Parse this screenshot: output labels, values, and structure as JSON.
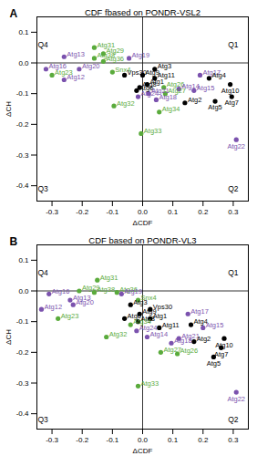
{
  "chart_data": [
    {
      "type": "scatter",
      "title": "CDF fbased on PONDR-VSL2",
      "x_label": "ΔCDF",
      "y_label": "ΔCH",
      "xlim": [
        -0.35,
        0.35
      ],
      "ylim": [
        -0.45,
        0.15
      ],
      "xticks": [
        {
          "value": -0.3,
          "label": "-0.3"
        },
        {
          "value": -0.2,
          "label": "-0.2"
        },
        {
          "value": -0.1,
          "label": "-0.1"
        },
        {
          "value": 0,
          "label": "0.0"
        },
        {
          "value": 0.1,
          "label": "0.1"
        },
        {
          "value": 0.2,
          "label": "0.2"
        },
        {
          "value": 0.3,
          "label": "0.3"
        }
      ],
      "yticks": [
        {
          "value": 0.1,
          "label": "0.1"
        },
        {
          "value": 0,
          "label": "0.0"
        },
        {
          "value": -0.1,
          "label": "-0.1"
        },
        {
          "value": -0.2,
          "label": "-0.2"
        },
        {
          "value": -0.3,
          "label": "-0.3"
        },
        {
          "value": -0.4,
          "label": "-0.4"
        }
      ],
      "reference_lines": {
        "x": 0,
        "y": 0
      },
      "annotations": [
        {
          "text": "A"
        },
        {
          "text": "Q1",
          "x": 0.3,
          "y": 0.06
        },
        {
          "text": "Q2",
          "x": 0.3,
          "y": -0.41
        },
        {
          "text": "Q3",
          "x": -0.33,
          "y": -0.41
        },
        {
          "text": "Q4",
          "x": -0.33,
          "y": 0.06
        }
      ],
      "labels": [
        "Atg16",
        "Atg13",
        "Atg31",
        "Atg29",
        "Atg38",
        "Atg36",
        "Atg19",
        "Snx4",
        "Atg23",
        "Atg20",
        "Atg12",
        "Atg3",
        "Vps30",
        "Atg9",
        "Atg11",
        "Atg1",
        "Atg8",
        "Atg6",
        "Atg26",
        "Atg24",
        "Atg27",
        "Atg14",
        "Atg15",
        "Atg17",
        "Atg4",
        "Atg10",
        "Atg7",
        "Atg5",
        "Atg2",
        "Atg18",
        "Atg21",
        "Atg32",
        "Atg34",
        "Atg33",
        "Atg22"
      ],
      "x": [
        -0.32,
        -0.26,
        -0.16,
        -0.13,
        -0.16,
        -0.13,
        -0.045,
        -0.1,
        -0.3,
        -0.21,
        -0.26,
        0.04,
        -0.06,
        0.0,
        0.04,
        0.015,
        -0.01,
        -0.02,
        0.07,
        -0.015,
        0.075,
        0.12,
        0.17,
        0.19,
        0.22,
        0.29,
        0.295,
        0.24,
        0.14,
        0.045,
        0.02,
        -0.095,
        0.055,
        -0.005,
        0.31
      ],
      "y": [
        -0.02,
        0.02,
        0.05,
        0.03,
        0.015,
        0.005,
        0.015,
        -0.03,
        -0.04,
        -0.02,
        -0.055,
        -0.02,
        -0.04,
        -0.04,
        -0.05,
        -0.07,
        -0.08,
        -0.09,
        -0.08,
        -0.11,
        -0.1,
        -0.085,
        -0.09,
        -0.04,
        -0.05,
        -0.07,
        -0.11,
        -0.125,
        -0.13,
        -0.12,
        -0.1,
        -0.14,
        -0.16,
        -0.23,
        -0.25
      ],
      "colors": [
        "#7b52ae",
        "#7b52ae",
        "#5aab3c",
        "#5aab3c",
        "#5aab3c",
        "#5aab3c",
        "#7b52ae",
        "#5aab3c",
        "#5aab3c",
        "#7b52ae",
        "#7b52ae",
        "#000000",
        "#000000",
        "#000000",
        "#000000",
        "#000000",
        "#000000",
        "#000000",
        "#5aab3c",
        "#7b52ae",
        "#5aab3c",
        "#7b52ae",
        "#7b52ae",
        "#7b52ae",
        "#000000",
        "#000000",
        "#000000",
        "#000000",
        "#000000",
        "#7b52ae",
        "#7b52ae",
        "#5aab3c",
        "#5aab3c",
        "#5aab3c",
        "#7b52ae"
      ]
    },
    {
      "type": "scatter",
      "title": "CDF based on PONDR-VL3",
      "x_label": "ΔCDF",
      "y_label": "ΔCH",
      "xlim": [
        -0.35,
        0.35
      ],
      "ylim": [
        -0.45,
        0.15
      ],
      "xticks": [
        {
          "value": -0.3,
          "label": "-0.3"
        },
        {
          "value": -0.2,
          "label": "-0.2"
        },
        {
          "value": -0.1,
          "label": "-0.1"
        },
        {
          "value": 0,
          "label": "0.0"
        },
        {
          "value": 0.1,
          "label": "0.1"
        },
        {
          "value": 0.2,
          "label": "0.2"
        },
        {
          "value": 0.3,
          "label": "0.3"
        }
      ],
      "yticks": [
        {
          "value": 0.1,
          "label": "0.1"
        },
        {
          "value": 0,
          "label": "0.0"
        },
        {
          "value": -0.1,
          "label": "-0.1"
        },
        {
          "value": -0.2,
          "label": "-0.2"
        },
        {
          "value": -0.3,
          "label": "-0.3"
        },
        {
          "value": -0.4,
          "label": "-0.4"
        }
      ],
      "reference_lines": {
        "x": 0,
        "y": 0
      },
      "annotations": [
        {
          "text": "B"
        },
        {
          "text": "Q1",
          "x": 0.3,
          "y": 0.06
        },
        {
          "text": "Q2",
          "x": 0.3,
          "y": -0.42
        },
        {
          "text": "Q3",
          "x": -0.33,
          "y": -0.42
        },
        {
          "text": "Q4",
          "x": -0.33,
          "y": 0.06
        }
      ],
      "labels": [
        "Atg16",
        "Atg29",
        "Atg31",
        "Atg38",
        "Atg36",
        "Atg13",
        "Atg20",
        "Atg12",
        "Atg23",
        "Atg19",
        "Snx4",
        "Atg3",
        "Vps30",
        "Atg9",
        "Atg6",
        "Atg8",
        "Atg1",
        "Atg11",
        "Atg17",
        "Atg4",
        "Atg15",
        "Atg14",
        "Atg24",
        "Atg18",
        "Atg21",
        "Atg2",
        "Atg10",
        "Atg7",
        "Atg5",
        "Atg26",
        "Atg27",
        "Atg32",
        "Atg34",
        "Atg33",
        "Atg22"
      ],
      "x": [
        -0.31,
        -0.21,
        -0.15,
        -0.16,
        -0.085,
        -0.24,
        -0.23,
        -0.335,
        -0.28,
        -0.07,
        -0.015,
        -0.04,
        0.025,
        -0.01,
        -0.06,
        -0.015,
        0.025,
        0.055,
        0.15,
        0.16,
        0.2,
        0.015,
        -0.02,
        0.095,
        0.12,
        0.17,
        0.27,
        0.26,
        0.235,
        0.115,
        0.06,
        -0.12,
        -0.04,
        -0.015,
        0.31
      ],
      "y": [
        -0.01,
        0.0,
        0.035,
        -0.005,
        -0.005,
        -0.03,
        -0.045,
        -0.06,
        -0.09,
        -0.01,
        -0.03,
        -0.045,
        -0.06,
        -0.075,
        -0.09,
        -0.1,
        -0.09,
        -0.12,
        -0.075,
        -0.11,
        -0.12,
        -0.15,
        -0.13,
        -0.17,
        -0.155,
        -0.165,
        -0.155,
        -0.185,
        -0.215,
        -0.205,
        -0.2,
        -0.15,
        -0.11,
        -0.31,
        -0.33
      ],
      "colors": [
        "#7b52ae",
        "#5aab3c",
        "#5aab3c",
        "#5aab3c",
        "#5aab3c",
        "#7b52ae",
        "#7b52ae",
        "#7b52ae",
        "#5aab3c",
        "#7b52ae",
        "#5aab3c",
        "#000000",
        "#000000",
        "#000000",
        "#000000",
        "#000000",
        "#000000",
        "#000000",
        "#7b52ae",
        "#000000",
        "#7b52ae",
        "#7b52ae",
        "#7b52ae",
        "#7b52ae",
        "#7b52ae",
        "#000000",
        "#000000",
        "#000000",
        "#000000",
        "#5aab3c",
        "#5aab3c",
        "#5aab3c",
        "#5aab3c",
        "#5aab3c",
        "#7b52ae"
      ]
    }
  ]
}
